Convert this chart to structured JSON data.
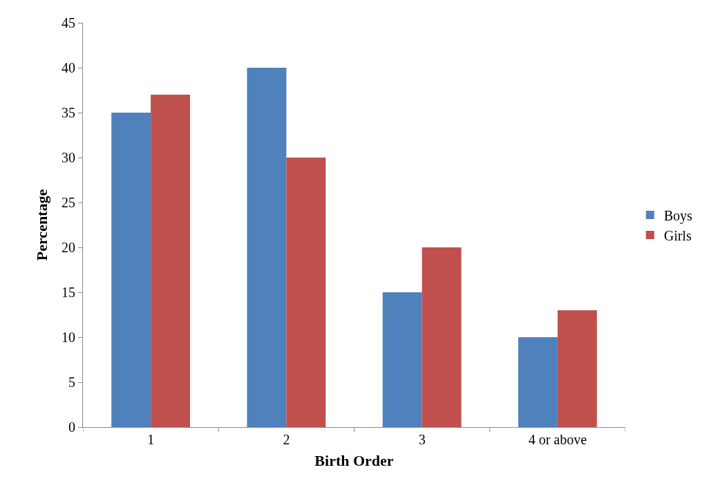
{
  "chart_data": {
    "type": "bar",
    "xlabel": "Birth Order",
    "ylabel": "Percentage",
    "categories": [
      "1",
      "2",
      "3",
      "4 or above"
    ],
    "series": [
      {
        "name": "Boys",
        "color": "#4f81bd",
        "values": [
          35,
          40,
          15,
          10
        ]
      },
      {
        "name": "Girls",
        "color": "#c0504d",
        "values": [
          37,
          30,
          20,
          13
        ]
      }
    ],
    "ylim": [
      0,
      45
    ],
    "yticks": [
      0,
      5,
      10,
      15,
      20,
      25,
      30,
      35,
      40,
      45
    ],
    "grid": false,
    "legend": "right"
  }
}
